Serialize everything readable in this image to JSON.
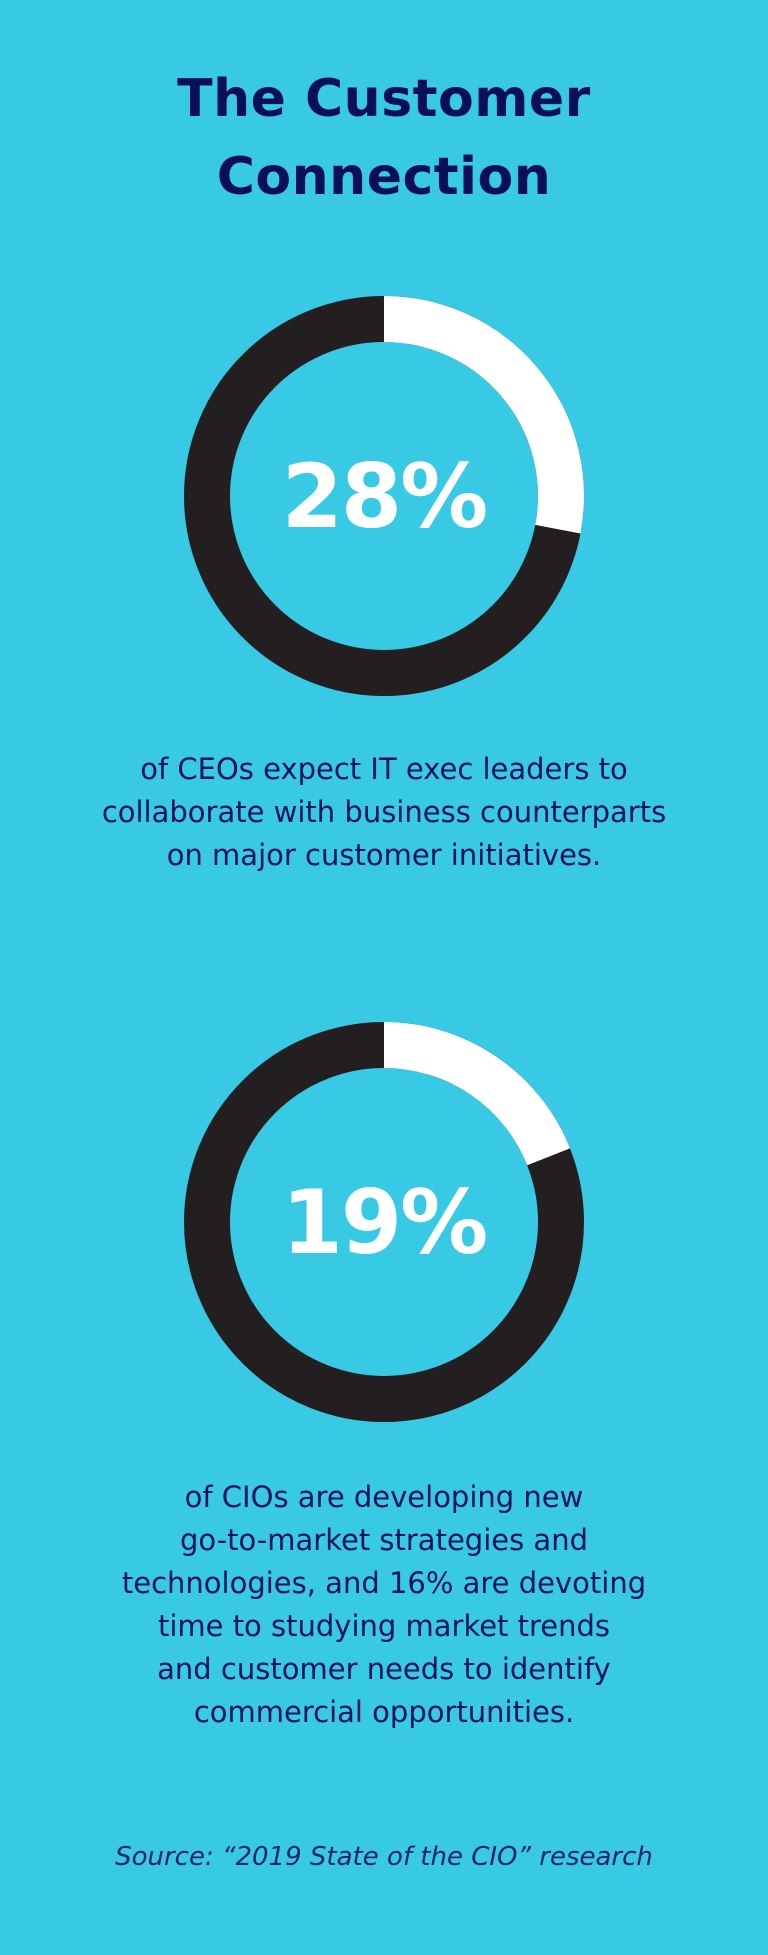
{
  "title": {
    "line1": "The Customer",
    "line2": "Connection"
  },
  "stats": [
    {
      "percent_label": "28%",
      "fraction": 0.28,
      "caption_lines": [
        "of CEOs expect IT exec leaders to",
        "collaborate with business counterparts",
        "on major customer initiatives."
      ]
    },
    {
      "percent_label": "19%",
      "fraction": 0.19,
      "caption_lines": [
        "of CIOs are developing new",
        "go-to-market strategies and",
        "technologies, and 16% are devoting",
        "time to studying market trends",
        "and customer needs to identify",
        "commercial opportunities."
      ]
    }
  ],
  "source": "Source: “2019 State of the CIO” research",
  "colors": {
    "background": "#38c9e5",
    "ring_dark": "#231f20",
    "ring_light": "#ffffff",
    "text_navy": "#0b0f55"
  }
}
